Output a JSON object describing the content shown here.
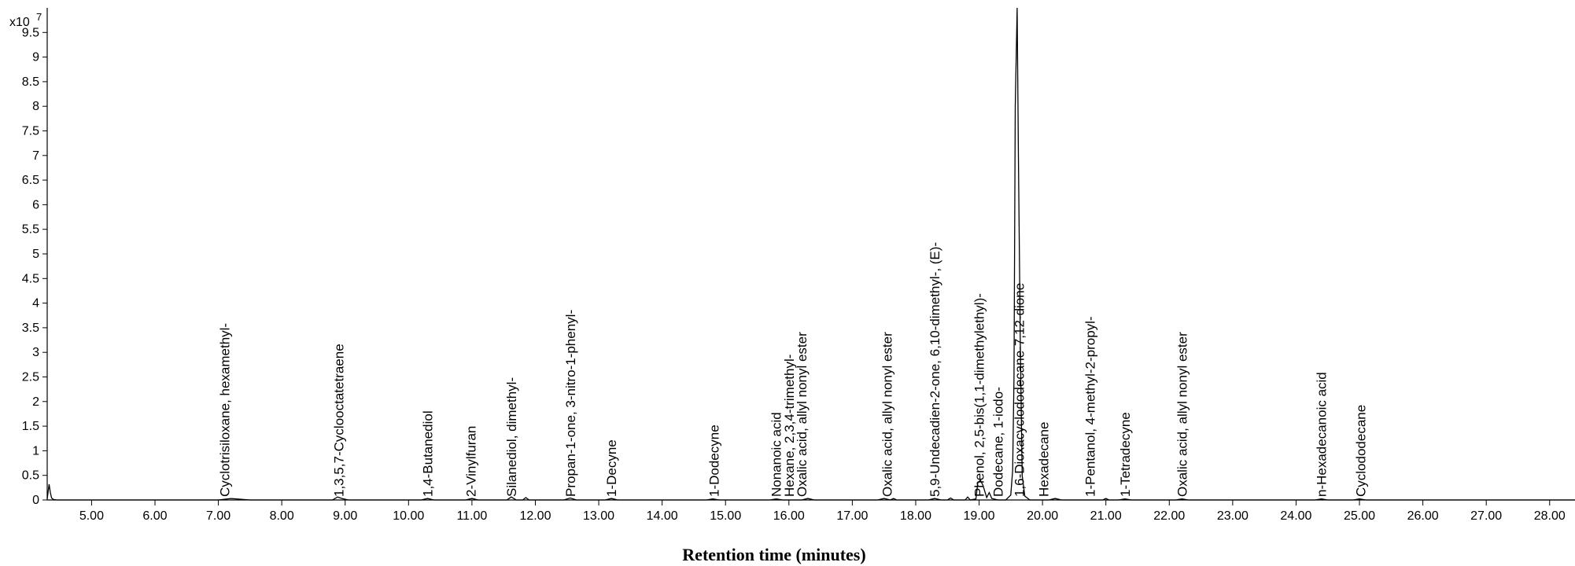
{
  "chart_data": {
    "type": "line",
    "title": "",
    "xlabel": "Retention time (minutes)",
    "ylabel": "",
    "y_scale_prefix": "x10",
    "y_scale_exponent": "7",
    "xlim": [
      4.3,
      28.4
    ],
    "ylim": [
      0,
      10
    ],
    "grid": false,
    "x_ticks": [
      "5.00",
      "6.00",
      "7.00",
      "8.00",
      "9.00",
      "10.00",
      "11.00",
      "12.00",
      "13.00",
      "14.00",
      "15.00",
      "16.00",
      "17.00",
      "18.00",
      "19.00",
      "20.00",
      "21.00",
      "22.00",
      "23.00",
      "24.00",
      "25.00",
      "26.00",
      "27.00",
      "28.00"
    ],
    "y_ticks": [
      "0",
      "0.5",
      "1",
      "1.5",
      "2",
      "2.5",
      "3",
      "3.5",
      "4",
      "4.5",
      "5",
      "5.5",
      "6",
      "6.5",
      "7",
      "7.5",
      "8",
      "8.5",
      "9",
      "9.5"
    ],
    "series": [
      {
        "x": [
          4.3,
          4.33,
          4.35,
          4.37,
          4.4,
          4.45,
          7.0,
          7.2,
          7.5,
          8.8,
          8.88,
          8.95,
          9.05,
          10.2,
          10.3,
          10.4,
          10.9,
          11.0,
          11.1,
          11.55,
          11.62,
          11.7,
          11.8,
          11.85,
          11.9,
          12.45,
          12.55,
          12.65,
          13.1,
          13.2,
          13.3,
          14.7,
          14.8,
          14.9,
          15.7,
          15.8,
          15.9,
          16.2,
          16.3,
          16.4,
          17.4,
          17.5,
          17.6,
          17.65,
          17.7,
          18.2,
          18.3,
          18.4,
          18.5,
          18.55,
          18.6,
          18.78,
          18.82,
          18.86,
          18.95,
          18.98,
          19.02,
          19.06,
          19.12,
          19.16,
          19.2,
          19.3,
          19.42,
          19.5,
          19.53,
          19.55,
          19.57,
          19.6,
          19.62,
          19.65,
          19.68,
          19.72,
          19.8,
          20.1,
          20.2,
          20.3,
          20.95,
          21.0,
          21.05,
          21.2,
          21.3,
          21.4,
          22.1,
          22.2,
          22.3,
          24.3,
          24.4,
          24.5,
          24.9,
          25.0,
          25.1,
          28.4
        ],
        "y": [
          0.02,
          0.32,
          0.15,
          0.04,
          0.01,
          0.0,
          0.0,
          0.03,
          0.0,
          0.0,
          0.06,
          0.03,
          0.0,
          0.0,
          0.03,
          0.0,
          0.0,
          0.03,
          0.0,
          0.0,
          0.06,
          0.0,
          0.0,
          0.05,
          0.0,
          0.0,
          0.04,
          0.0,
          0.0,
          0.03,
          0.0,
          0.0,
          0.02,
          0.0,
          0.0,
          0.02,
          0.0,
          0.0,
          0.03,
          0.0,
          0.0,
          0.03,
          0.0,
          0.03,
          0.0,
          0.0,
          0.03,
          0.0,
          0.0,
          0.04,
          0.0,
          0.0,
          0.06,
          0.0,
          0.02,
          0.35,
          0.4,
          0.3,
          0.05,
          0.15,
          0.03,
          0.0,
          0.0,
          0.1,
          0.6,
          2.5,
          8.0,
          10.0,
          7.0,
          3.2,
          0.5,
          0.08,
          0.0,
          0.0,
          0.03,
          0.0,
          0.0,
          0.03,
          0.0,
          0.0,
          0.02,
          0.0,
          0.0,
          0.02,
          0.0,
          0.0,
          0.02,
          0.0,
          0.0,
          0.02,
          0.0,
          0.0
        ]
      }
    ],
    "annotations": [
      {
        "x": 7.1,
        "text": "Cyclotrisiloxane, hexamethyl-"
      },
      {
        "x": 8.9,
        "text": "1,3,5,7-Cyclooctatetraene"
      },
      {
        "x": 10.3,
        "text": "1,4-Butanediol"
      },
      {
        "x": 10.98,
        "text": "2-Vinylfuran"
      },
      {
        "x": 11.62,
        "text": "Silanediol, dimethyl-"
      },
      {
        "x": 12.55,
        "text": "Propan-1-one, 3-nitro-1-phenyl-"
      },
      {
        "x": 13.2,
        "text": "1-Decyne"
      },
      {
        "x": 14.82,
        "text": "1-Dodecyne"
      },
      {
        "x": 15.8,
        "text": "Nonanoic acid"
      },
      {
        "x": 16.0,
        "text": "Hexane, 2,3,4-trimethyl-"
      },
      {
        "x": 16.2,
        "text": "Oxalic acid, allyl nonyl ester"
      },
      {
        "x": 17.55,
        "text": "Oxalic acid, allyl nonyl ester"
      },
      {
        "x": 18.3,
        "text": "5,9-Undecadien-2-one, 6,10-dimethyl-, (E)-"
      },
      {
        "x": 19.0,
        "text": "Phenol, 2,5-bis(1,1-dimethylethyl)-"
      },
      {
        "x": 19.3,
        "text": "Dodecane, 1-iodo-"
      },
      {
        "x": 19.63,
        "text": "1,6-Dioxacyclododecane-7,12-dione"
      },
      {
        "x": 20.02,
        "text": "Hexadecane"
      },
      {
        "x": 20.75,
        "text": "1-Pentanol, 4-methyl-2-propyl-"
      },
      {
        "x": 21.3,
        "text": "1-Tetradecyne"
      },
      {
        "x": 22.2,
        "text": "Oxalic acid, allyl nonyl ester"
      },
      {
        "x": 24.4,
        "text": "n-Hexadecanoic acid"
      },
      {
        "x": 25.02,
        "text": "Cyclododecane"
      }
    ]
  }
}
